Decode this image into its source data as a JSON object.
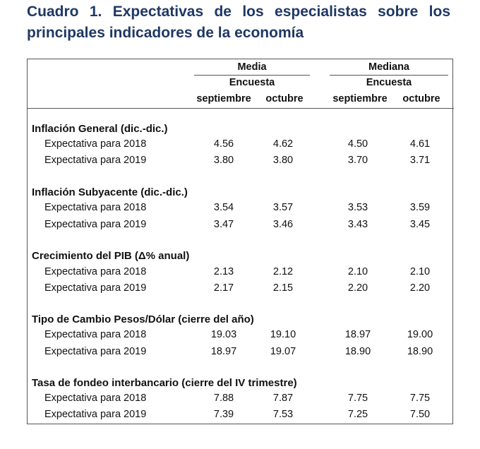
{
  "title": "Cuadro 1. Expectativas de los especialistas sobre los principales indicadores de la economía",
  "header": {
    "media": "Media",
    "mediana": "Mediana",
    "encuesta": "Encuesta",
    "septiembre": "septiembre",
    "octubre": "octubre"
  },
  "sections": [
    {
      "title": "Inflación General (dic.-dic.)",
      "rows": [
        {
          "label": "Expectativa para 2018",
          "values": [
            "4.56",
            "4.62",
            "4.50",
            "4.61"
          ]
        },
        {
          "label": "Expectativa para 2019",
          "values": [
            "3.80",
            "3.80",
            "3.70",
            "3.71"
          ]
        }
      ]
    },
    {
      "title": "Inflación Subyacente (dic.-dic.)",
      "rows": [
        {
          "label": "Expectativa para 2018",
          "values": [
            "3.54",
            "3.57",
            "3.53",
            "3.59"
          ]
        },
        {
          "label": "Expectativa para 2019",
          "values": [
            "3.47",
            "3.46",
            "3.43",
            "3.45"
          ]
        }
      ]
    },
    {
      "title": "Crecimiento del PIB (Δ% anual)",
      "rows": [
        {
          "label": "Expectativa para 2018",
          "values": [
            "2.13",
            "2.12",
            "2.10",
            "2.10"
          ]
        },
        {
          "label": "Expectativa para 2019",
          "values": [
            "2.17",
            "2.15",
            "2.20",
            "2.20"
          ]
        }
      ]
    },
    {
      "title": "Tipo de Cambio Pesos/Dólar (cierre del año)",
      "rows": [
        {
          "label": "Expectativa para 2018",
          "values": [
            "19.03",
            "19.10",
            "18.97",
            "19.00"
          ]
        },
        {
          "label": "Expectativa para 2019",
          "values": [
            "18.97",
            "19.07",
            "18.90",
            "18.90"
          ]
        }
      ]
    },
    {
      "title": "Tasa de fondeo interbancario (cierre del IV trimestre)",
      "rows": [
        {
          "label": "Expectativa para 2018",
          "values": [
            "7.88",
            "7.87",
            "7.75",
            "7.75"
          ]
        },
        {
          "label": "Expectativa para 2019",
          "values": [
            "7.39",
            "7.53",
            "7.25",
            "7.50"
          ]
        }
      ]
    }
  ]
}
